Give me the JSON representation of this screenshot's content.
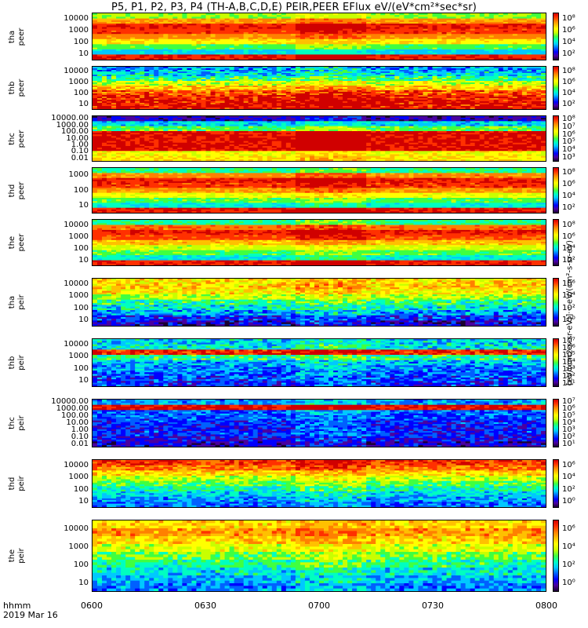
{
  "title": "P5, P1, P2, P3, P4 (TH-A,B,C,D,E) PEIR,PEER EFlux eV/(eV*cm²*sec*sr)",
  "units_label": "[eV/(cm2-s-sr-eV)]··· eV/(cm²-s-sr-eV)",
  "time_axis": {
    "ticks": [
      "0600",
      "0630",
      "0700",
      "0730",
      "0800"
    ],
    "label_line1": "hhmm",
    "label_line2": "2019 Mar 16"
  },
  "colors": {
    "spectrum": [
      "#1a0030",
      "#4a00a0",
      "#0000ff",
      "#0060ff",
      "#00c8ff",
      "#00ffc0",
      "#40ff40",
      "#c8ff00",
      "#ffff00",
      "#ffc000",
      "#ff8000",
      "#ff3000",
      "#d00000"
    ]
  },
  "chart_data": {
    "type": "heatmap",
    "x_range": [
      "0600",
      "0800"
    ],
    "panels": [
      {
        "name": "tha peer",
        "ylabel": "tha\npeer",
        "yticks": [
          "10000",
          "1000",
          "100",
          "10"
        ],
        "cbar_ticks": [
          "10⁸",
          "10⁶",
          "10⁴",
          "10²"
        ],
        "profile": [
          0.55,
          0.8,
          0.95,
          0.92,
          0.82,
          0.68,
          0.5,
          0.35,
          0.95
        ],
        "noise": 0.05
      },
      {
        "name": "thb peer",
        "ylabel": "thb\npeer",
        "yticks": [
          "10000",
          "1000",
          "100",
          "10"
        ],
        "cbar_ticks": [
          "10⁸",
          "10⁶",
          "10⁴",
          "10²"
        ],
        "profile": [
          0.3,
          0.35,
          0.45,
          0.6,
          0.75,
          0.88,
          0.95,
          0.97,
          0.98
        ],
        "noise": 0.12
      },
      {
        "name": "thc peer",
        "ylabel": "thc\npeer",
        "yticks": [
          "10000.00",
          "1000.00",
          "100.00",
          "10.00",
          "1.00",
          "0.10",
          "0.01"
        ],
        "cbar_ticks": [
          "10⁸",
          "10⁷",
          "10⁶",
          "10⁵",
          "10⁴",
          "10³"
        ],
        "profile": [
          0.1,
          0.35,
          0.5,
          0.98,
          0.98,
          0.98,
          0.98,
          0.65,
          0.7
        ],
        "noise": 0.08
      },
      {
        "name": "thd peer",
        "ylabel": "thd\npeer",
        "yticks": [
          "1000",
          "100",
          "10"
        ],
        "cbar_ticks": [
          "10⁸",
          "10⁶",
          "10⁴",
          "10²"
        ],
        "profile": [
          0.45,
          0.82,
          0.95,
          0.92,
          0.8,
          0.65,
          0.5,
          0.4,
          0.96
        ],
        "noise": 0.06
      },
      {
        "name": "the peer",
        "ylabel": "the\npeer",
        "yticks": [
          "10000",
          "1000",
          "100",
          "10"
        ],
        "cbar_ticks": [
          "10⁸",
          "10⁶",
          "10⁴",
          "10²"
        ],
        "profile": [
          0.45,
          0.85,
          0.95,
          0.9,
          0.75,
          0.6,
          0.5,
          0.4,
          0.95
        ],
        "noise": 0.06
      },
      {
        "name": "tha peir",
        "ylabel": "tha\npeir",
        "yticks": [
          "10000",
          "1000",
          "100",
          "10"
        ],
        "cbar_ticks": [
          "10⁶",
          "10⁴",
          "10²",
          "10⁰"
        ],
        "profile": [
          0.7,
          0.72,
          0.68,
          0.58,
          0.45,
          0.38,
          0.3,
          0.2,
          0.12
        ],
        "noise": 0.12
      },
      {
        "name": "thb peir",
        "ylabel": "thb\npeir",
        "yticks": [
          "10000",
          "1000",
          "100",
          "10"
        ],
        "cbar_ticks": [
          "10⁷",
          "10⁶",
          "10⁵",
          "10⁴",
          "10³",
          "10²",
          "10¹"
        ],
        "profile": [
          0.35,
          0.38,
          0.95,
          0.45,
          0.32,
          0.28,
          0.25,
          0.22,
          0.2
        ],
        "noise": 0.12
      },
      {
        "name": "thc peir",
        "ylabel": "thc\npeir",
        "yticks": [
          "10000.00",
          "1000.00",
          "100.00",
          "10.00",
          "1.00",
          "0.10",
          "0.01"
        ],
        "cbar_ticks": [
          "10⁷",
          "10⁶",
          "10⁵",
          "10⁴",
          "10³",
          "10²",
          "10¹"
        ],
        "profile": [
          0.3,
          0.98,
          0.25,
          0.22,
          0.2,
          0.18,
          0.2,
          0.15,
          0.12
        ],
        "noise": 0.1
      },
      {
        "name": "thd peir",
        "ylabel": "thd\npeir",
        "yticks": [
          "10000",
          "1000",
          "100",
          "10"
        ],
        "cbar_ticks": [
          "10⁶",
          "10⁴",
          "10²",
          "10⁰"
        ],
        "profile": [
          0.92,
          0.85,
          0.72,
          0.6,
          0.5,
          0.42,
          0.35,
          0.3,
          0.25
        ],
        "noise": 0.1
      },
      {
        "name": "the peir",
        "ylabel": "the\npeir",
        "yticks": [
          "10000",
          "1000",
          "100",
          "10"
        ],
        "cbar_ticks": [
          "10⁶",
          "10⁴",
          "10²",
          "10⁰"
        ],
        "profile": [
          0.72,
          0.8,
          0.72,
          0.62,
          0.52,
          0.45,
          0.38,
          0.32,
          0.28
        ],
        "noise": 0.1
      }
    ]
  }
}
